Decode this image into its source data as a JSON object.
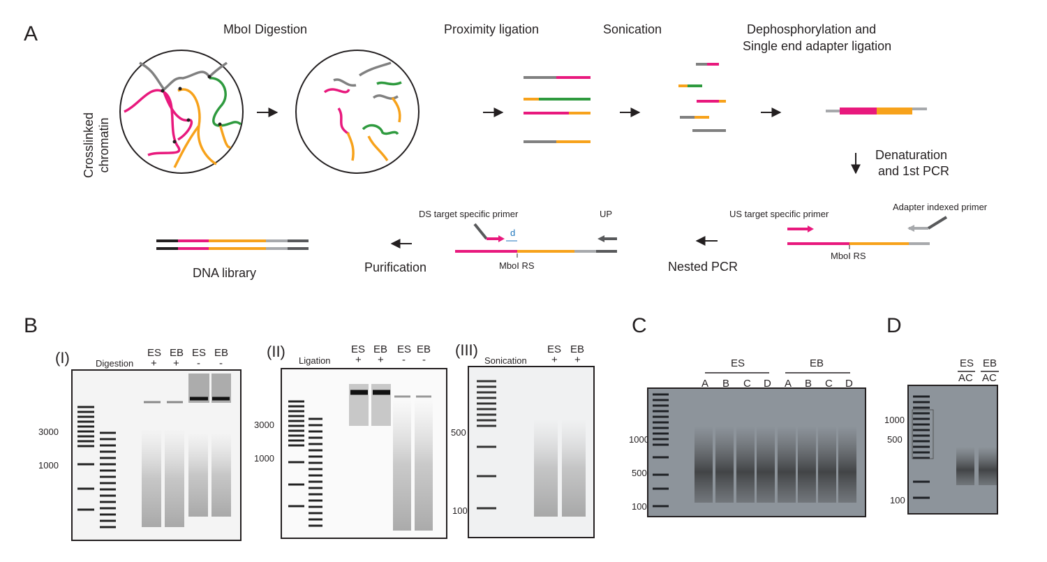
{
  "panels": {
    "a": "A",
    "b": "B",
    "c": "C",
    "d": "D"
  },
  "panel_a": {
    "crosslinked_line1": "Crosslinked",
    "crosslinked_line2": "chromatin",
    "step_digestion": "MboI Digestion",
    "step_ligation": "Proximity ligation",
    "step_sonication": "Sonication",
    "step_dephos_line1": "Dephosphorylation and",
    "step_dephos_line2": "Single end adapter ligation",
    "step_denat_line1": "Denaturation",
    "step_denat_line2": "and 1st PCR",
    "adapter_primer": "Adapter indexed primer",
    "us_primer": "US target specific primer",
    "mboi_rs_us": "MboI RS",
    "nested_pcr": "Nested PCR",
    "ds_primer": "DS target specific primer",
    "up": "UP",
    "d_label": "d",
    "mboi_rs_ds": "MboI RS",
    "purification": "Purification",
    "dna_library": "DNA library"
  },
  "panel_b": {
    "gel1": {
      "roman": "(I)",
      "row": "Digestion",
      "lanes": [
        "ES",
        "EB",
        "ES",
        "EB"
      ],
      "signs": [
        "+",
        "+",
        "-",
        "-"
      ],
      "markers": [
        "3000",
        "1000"
      ]
    },
    "gel2": {
      "roman": "(II)",
      "row": "Ligation",
      "lanes": [
        "ES",
        "EB",
        "ES",
        "EB"
      ],
      "signs": [
        "+",
        "+",
        "-",
        "-"
      ],
      "markers": [
        "3000",
        "1000"
      ]
    },
    "gel3": {
      "roman": "(III)",
      "row": "Sonication",
      "lanes": [
        "ES",
        "EB"
      ],
      "signs": [
        "+",
        "+"
      ],
      "markers": [
        "500",
        "100"
      ]
    }
  },
  "panel_c": {
    "group1": "ES",
    "group2": "EB",
    "lanes": [
      "A",
      "B",
      "C",
      "D",
      "A",
      "B",
      "C",
      "D"
    ],
    "markers": [
      "1000",
      "500",
      "100"
    ]
  },
  "panel_d": {
    "lanes_top": [
      "ES",
      "EB"
    ],
    "lanes_bottom": [
      "AC",
      "AC"
    ],
    "markers": [
      "1000",
      "500",
      "100"
    ]
  },
  "colors": {
    "magenta": "#e8197d",
    "orange": "#f7a21b",
    "green": "#2e9a3e",
    "gray": "#808080",
    "light_gray": "#a7a9ac",
    "dark_gray": "#58595b",
    "blue": "#1c75bc"
  }
}
